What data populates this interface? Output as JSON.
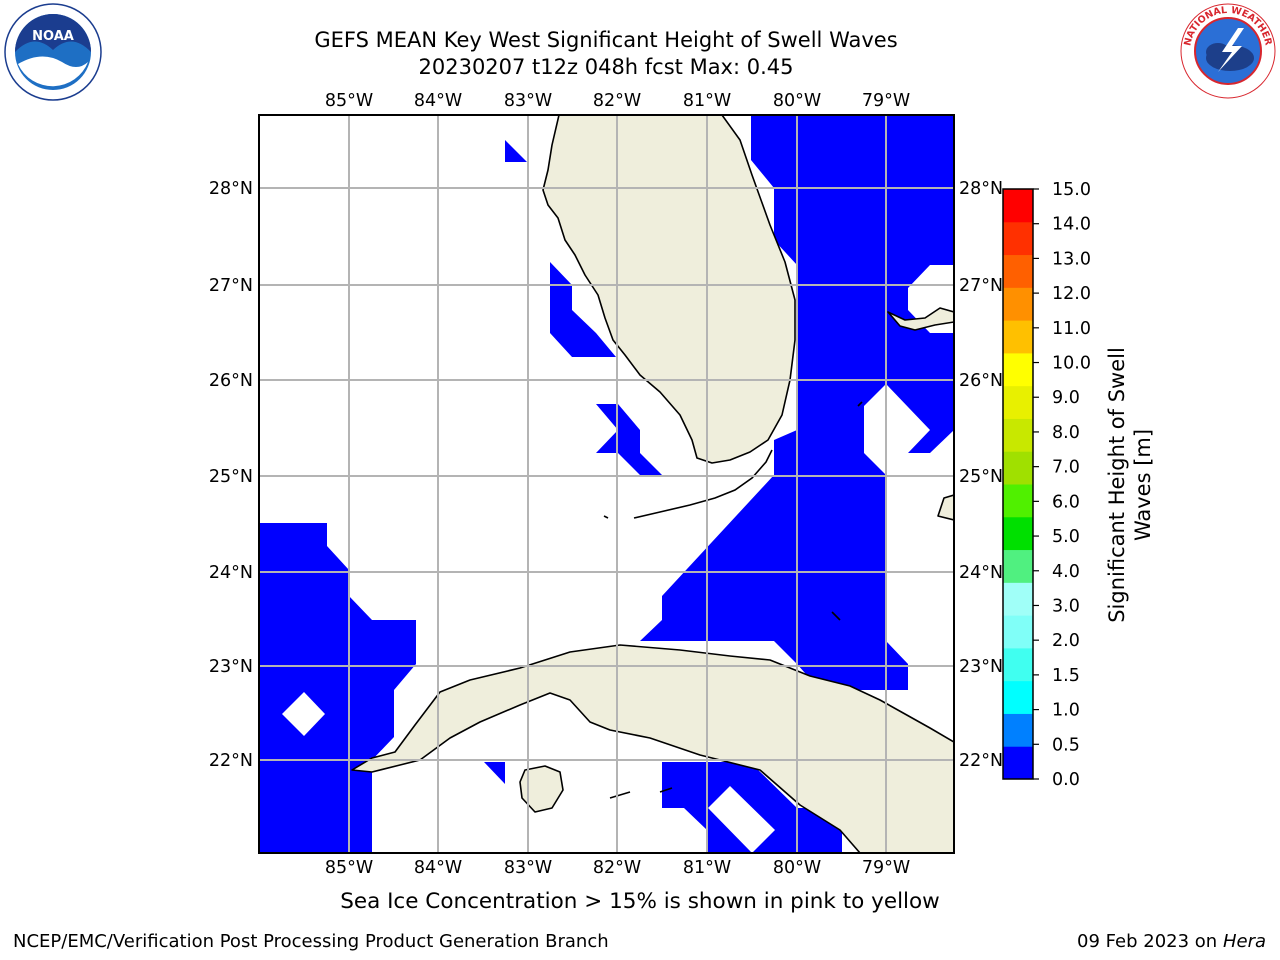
{
  "title": {
    "line1": "GEFS MEAN Key West Significant Height of Swell Waves",
    "line2": "20230207 t12z 048h fcst   Max: 0.45"
  },
  "logos": {
    "left": {
      "icon": "noaa-logo-icon",
      "text": "NOAA",
      "ring_text": "NATIONAL OCEANIC AND ATMOSPHERIC ADMINISTRATION · U.S. DEPARTMENT OF COMMERCE"
    },
    "right": {
      "icon": "nws-logo-icon",
      "ring_text": "NATIONAL WEATHER SERVICE"
    }
  },
  "map": {
    "lon_labels": [
      "85°W",
      "84°W",
      "83°W",
      "82°W",
      "81°W",
      "80°W",
      "79°W"
    ],
    "lat_labels": [
      "28°N",
      "27°N",
      "26°N",
      "25°N",
      "24°N",
      "23°N",
      "22°N"
    ],
    "colors": {
      "swell_low": "#0000ff",
      "land": "#efeedc",
      "grid": "#b4b4b4",
      "coast": "#000000"
    }
  },
  "colorbar": {
    "label_line1": "Significant Height of Swell",
    "label_line2": "Waves [m]",
    "ticks": [
      "0.0",
      "0.5",
      "1.0",
      "1.5",
      "2.0",
      "3.0",
      "4.0",
      "5.0",
      "6.0",
      "7.0",
      "8.0",
      "9.0",
      "10.0",
      "11.0",
      "12.0",
      "13.0",
      "14.0",
      "15.0"
    ],
    "colors": [
      "#0000ff",
      "#0080ff",
      "#00ffff",
      "#40fff0",
      "#80fff8",
      "#a0fff8",
      "#50f080",
      "#00e000",
      "#50f000",
      "#a0e000",
      "#c8e800",
      "#e8f000",
      "#ffff00",
      "#ffc000",
      "#ff9000",
      "#ff6000",
      "#ff3000",
      "#ff0000"
    ]
  },
  "note": "Sea Ice Concentration > 15% is shown in pink to yellow",
  "footer": {
    "left": "NCEP/EMC/Verification Post Processing Product Generation Branch",
    "right_date": "09 Feb 2023 on",
    "right_host": "Hera"
  }
}
